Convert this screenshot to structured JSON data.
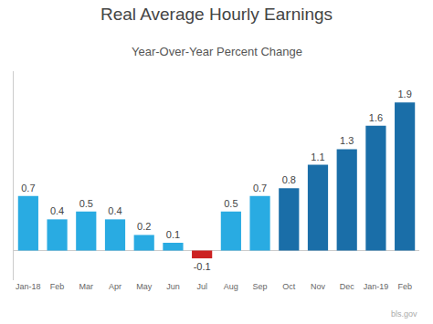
{
  "chart_data": {
    "type": "bar",
    "title": "Real Average Hourly Earnings",
    "subtitle": "Year-Over-Year Percent Change",
    "categories": [
      "Jan-18",
      "Feb",
      "Mar",
      "Apr",
      "May",
      "Jun",
      "Jul",
      "Aug",
      "Sep",
      "Oct",
      "Nov",
      "Dec",
      "Jan-19",
      "Feb"
    ],
    "values": [
      0.7,
      0.4,
      0.5,
      0.4,
      0.2,
      0.1,
      -0.1,
      0.5,
      0.7,
      0.8,
      1.1,
      1.3,
      1.6,
      1.9
    ],
    "colors": [
      "#29abe2",
      "#29abe2",
      "#29abe2",
      "#29abe2",
      "#29abe2",
      "#29abe2",
      "#cc2222",
      "#29abe2",
      "#29abe2",
      "#1a6ea8",
      "#1a6ea8",
      "#1a6ea8",
      "#1a6ea8",
      "#1a6ea8"
    ],
    "ylim": [
      -0.38,
      2.3
    ],
    "grid": false,
    "data_labels": true,
    "tick_labels": "x",
    "annotations": [
      "bls.gov"
    ]
  }
}
